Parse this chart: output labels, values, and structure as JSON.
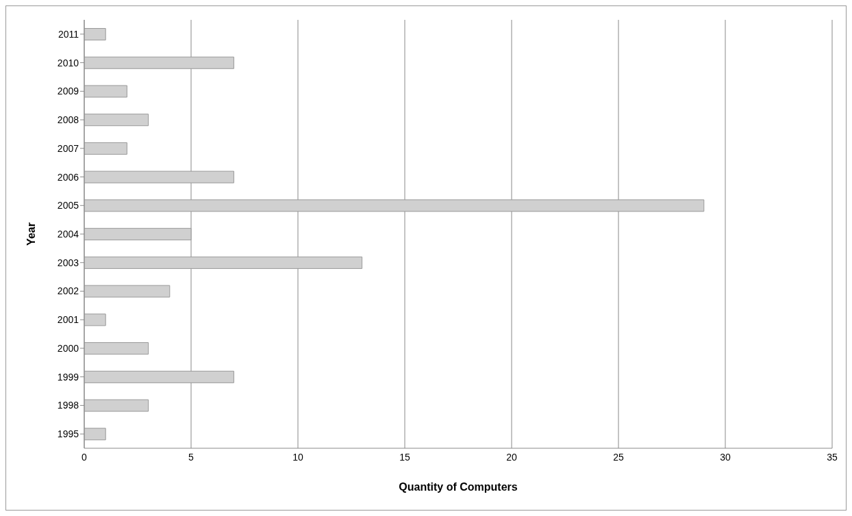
{
  "chart_data": {
    "type": "bar",
    "orientation": "horizontal",
    "xlabel": "Quantity of Computers",
    "ylabel": "Year",
    "categories": [
      "2011",
      "2010",
      "2009",
      "2008",
      "2007",
      "2006",
      "2005",
      "2004",
      "2003",
      "2002",
      "2001",
      "2000",
      "1999",
      "1998",
      "1995"
    ],
    "values": [
      1,
      7,
      2,
      3,
      2,
      7,
      29,
      5,
      13,
      4,
      1,
      3,
      7,
      3,
      1
    ],
    "color": "#d0d0d0",
    "xlim": [
      0,
      35
    ],
    "xticks": [
      0,
      5,
      10,
      15,
      20,
      25,
      30,
      35
    ],
    "grid": "x",
    "legend": false
  }
}
